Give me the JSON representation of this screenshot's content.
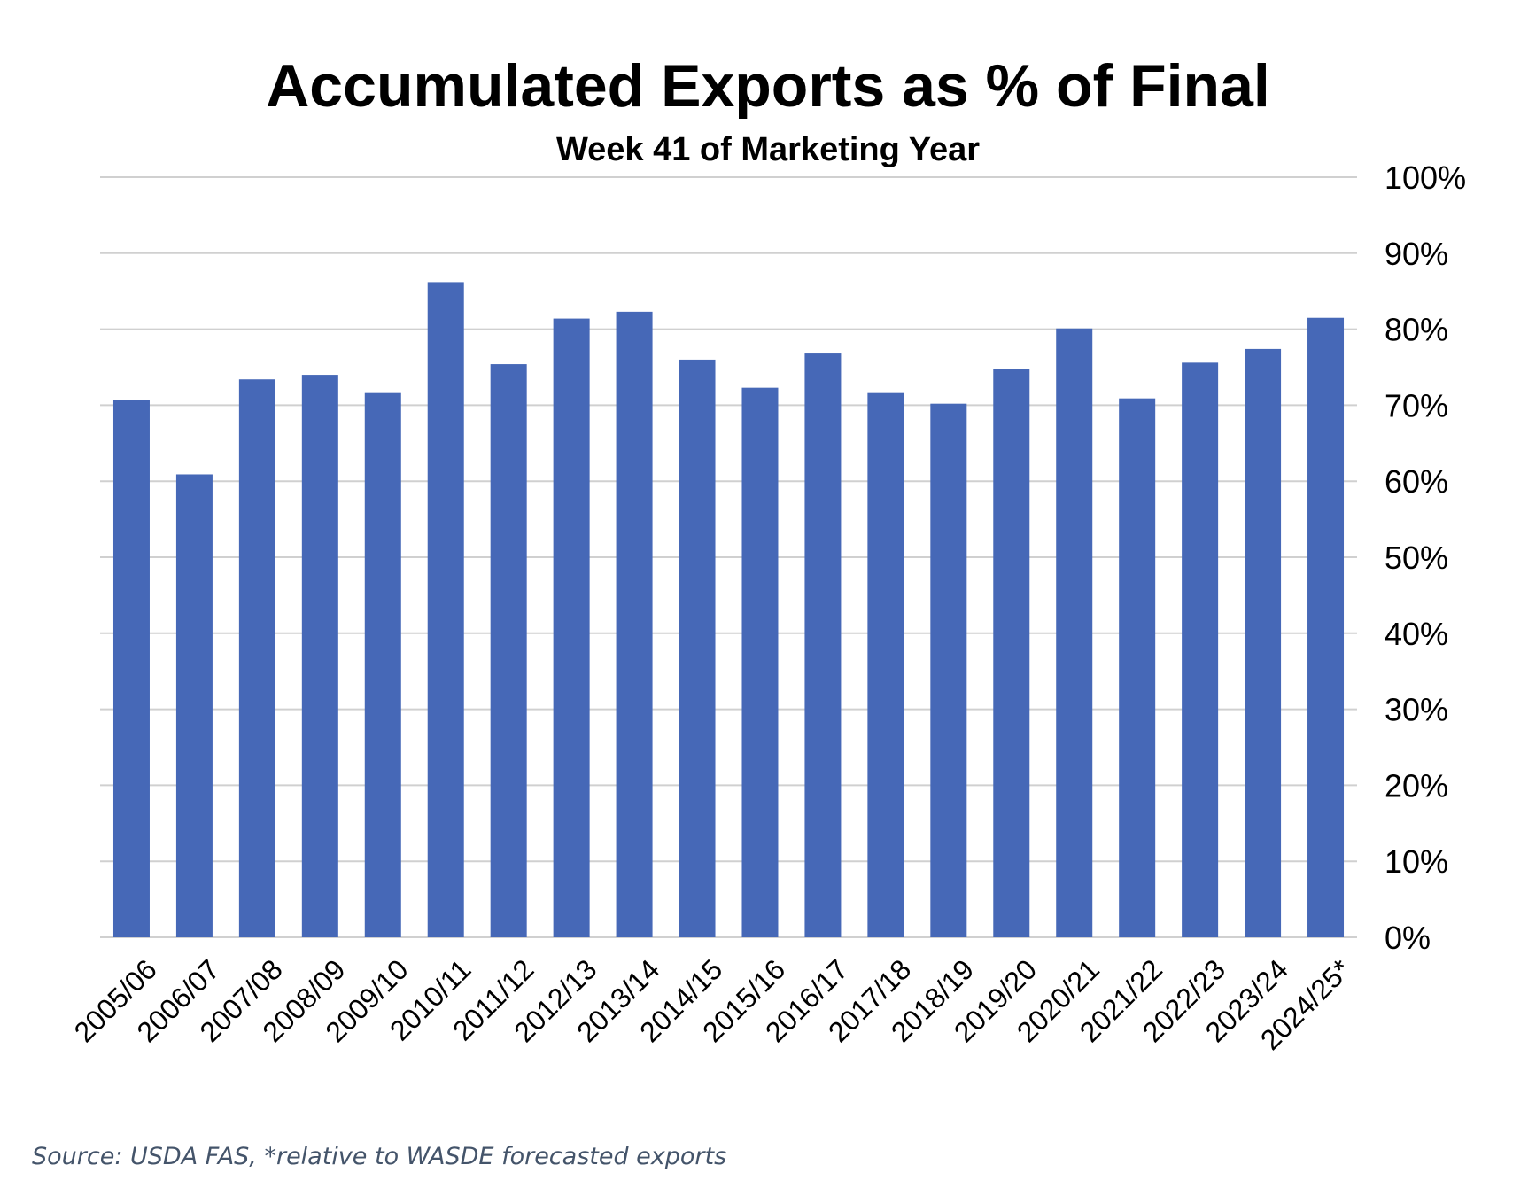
{
  "chart_data": {
    "type": "bar",
    "title": "Accumulated Exports as % of Final",
    "subtitle": "Week 41 of Marketing Year",
    "categories": [
      "2005/06",
      "2006/07",
      "2007/08",
      "2008/09",
      "2009/10",
      "2010/11",
      "2011/12",
      "2012/13",
      "2013/14",
      "2014/15",
      "2015/16",
      "2016/17",
      "2017/18",
      "2018/19",
      "2019/20",
      "2020/21",
      "2021/22",
      "2022/23",
      "2023/24",
      "2024/25*"
    ],
    "values": [
      70.7,
      60.9,
      73.4,
      74.0,
      71.6,
      86.2,
      75.4,
      81.4,
      82.3,
      76.0,
      72.3,
      76.8,
      71.6,
      70.2,
      74.8,
      80.1,
      70.9,
      75.6,
      77.4,
      81.5
    ],
    "yticks": [
      "0%",
      "10%",
      "20%",
      "30%",
      "40%",
      "50%",
      "60%",
      "70%",
      "80%",
      "90%",
      "100%"
    ],
    "ylim": [
      0,
      100
    ],
    "y_axis_side": "right",
    "grid": true,
    "bar_color": "#4668b7",
    "grid_color": "#d0d0d0"
  },
  "footnote": "Source: USDA FAS, *relative to WASDE forecasted exports"
}
